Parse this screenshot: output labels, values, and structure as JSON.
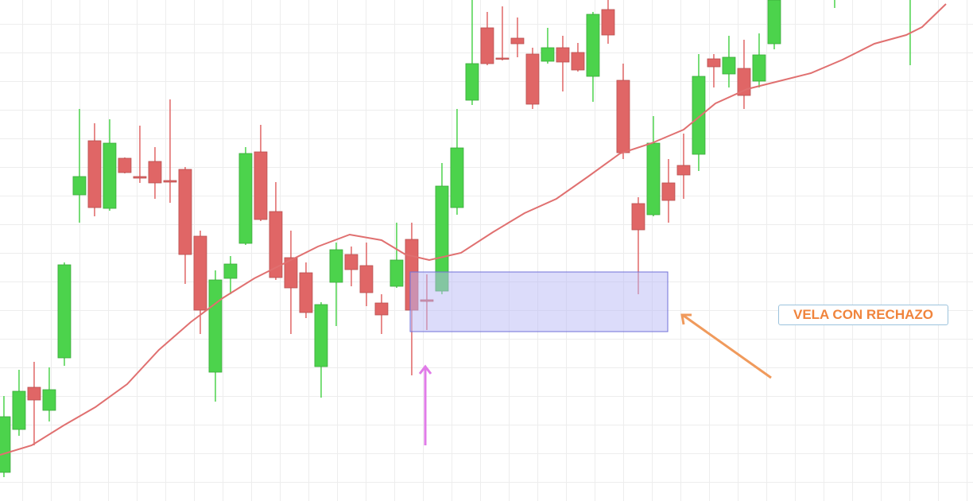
{
  "chart_data": {
    "type": "candlestick",
    "x": [
      0,
      1,
      2,
      3,
      4,
      5,
      6,
      7,
      8,
      9,
      10,
      11,
      12,
      13,
      14,
      15,
      16,
      17,
      18,
      19,
      20,
      21,
      22,
      23,
      24,
      25,
      26,
      27,
      28,
      29,
      30,
      31,
      32,
      33,
      34,
      35,
      36,
      37,
      38,
      39,
      40,
      41,
      42,
      43,
      44,
      45,
      46,
      47,
      48,
      49,
      50,
      51,
      55,
      60
    ],
    "open": [
      36,
      90,
      143,
      114,
      180,
      385,
      453,
      368,
      431,
      408,
      427,
      403,
      417,
      333,
      162,
      280,
      324,
      439,
      364,
      306,
      287,
      169,
      275,
      310,
      296,
      249,
      270,
      329,
      253,
      264,
      369,
      504,
      595,
      557,
      582,
      562,
      553,
      570,
      564,
      534,
      618,
      529,
      374,
      360,
      400,
      422,
      436,
      556,
      537,
      544,
      528,
      575,
      640,
      640
    ],
    "high": [
      132,
      165,
      175,
      168,
      300,
      493,
      475,
      480,
      432,
      472,
      445,
      505,
      420,
      340,
      290,
      308,
      445,
      473,
      401,
      340,
      300,
      250,
      325,
      320,
      325,
      260,
      350,
      350,
      285,
      425,
      493,
      630,
      615,
      622,
      608,
      570,
      595,
      585,
      576,
      615,
      630,
      550,
      382,
      484,
      430,
      462,
      562,
      562,
      585,
      580,
      588,
      630,
      660,
      660
    ],
    "low": [
      30,
      82,
      70,
      100,
      170,
      350,
      358,
      365,
      412,
      400,
      380,
      375,
      273,
      210,
      125,
      260,
      322,
      352,
      278,
      210,
      230,
      130,
      220,
      270,
      245,
      210,
      268,
      158,
      215,
      260,
      360,
      498,
      548,
      554,
      558,
      493,
      550,
      515,
      540,
      502,
      575,
      430,
      260,
      358,
      350,
      380,
      415,
      520,
      520,
      493,
      520,
      568,
      620,
      548
    ],
    "close": [
      106,
      138,
      127,
      140,
      297,
      408,
      369,
      450,
      413,
      406,
      400,
      401,
      310,
      240,
      278,
      298,
      437,
      354,
      281,
      268,
      237,
      247,
      316,
      291,
      262,
      234,
      303,
      240,
      251,
      396,
      444,
      550,
      550,
      556,
      575,
      499,
      570,
      552,
      542,
      612,
      586,
      438,
      341,
      450,
      378,
      410,
      534,
      546,
      558,
      510,
      561,
      630,
      660,
      660
    ],
    "up_color": "#4cd34c",
    "down_color": "#e06666",
    "xlim": [
      -0.26,
      64.16
    ],
    "ylim": [
      0,
      630
    ],
    "grid": true,
    "overlay": {
      "type": "line",
      "color": "#e07070",
      "x": [
        -0.26,
        1.84,
        3.95,
        6.05,
        8.16,
        10.26,
        12.37,
        14.47,
        16.58,
        18.68,
        20.79,
        22.89,
        25,
        26.58,
        28.16,
        30.26,
        32.37,
        34.47,
        36.58,
        38.68,
        40.79,
        42.89,
        45,
        47.11,
        49.21,
        51.32,
        53.42,
        55.53,
        57.63,
        59.74,
        60.79,
        62.37
      ],
      "values": [
        58,
        70,
        95,
        118,
        147,
        190,
        225,
        255,
        280,
        300,
        320,
        335,
        328,
        310,
        303,
        312,
        338,
        362,
        380,
        408,
        437,
        450,
        467,
        500,
        518,
        528,
        538,
        555,
        575,
        586,
        596,
        625
      ]
    },
    "annotation": "VELA CON RECHAZO"
  }
}
